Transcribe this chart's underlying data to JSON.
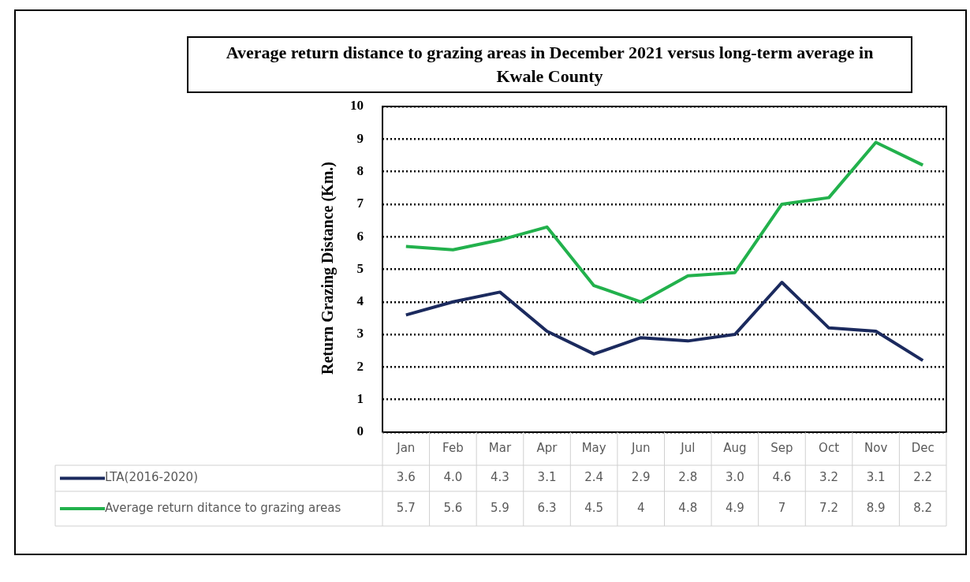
{
  "chart_data": {
    "type": "line",
    "title": "Average return distance to grazing areas in December 2021 versus long-term average in Kwale County",
    "ylabel": "Return  Grazing Distance (Km.)",
    "categories": [
      "Jan",
      "Feb",
      "Mar",
      "Apr",
      "May",
      "Jun",
      "Jul",
      "Aug",
      "Sep",
      "Oct",
      "Nov",
      "Dec"
    ],
    "series": [
      {
        "name": "LTA(2016-2020)",
        "color": "#1b2a5e",
        "values": [
          3.6,
          4.0,
          4.3,
          3.1,
          2.4,
          2.9,
          2.8,
          3.0,
          4.6,
          3.2,
          3.1,
          2.2
        ],
        "value_labels": [
          "3.6",
          "4.0",
          "4.3",
          "3.1",
          "2.4",
          "2.9",
          "2.8",
          "3.0",
          "4.6",
          "3.2",
          "3.1",
          "2.2"
        ]
      },
      {
        "name": "Average return ditance to grazing areas",
        "color": "#22b14c",
        "values": [
          5.7,
          5.6,
          5.9,
          6.3,
          4.5,
          4,
          4.8,
          4.9,
          7,
          7.2,
          8.9,
          8.2
        ],
        "value_labels": [
          "5.7",
          "5.6",
          "5.9",
          "6.3",
          "4.5",
          "4",
          "4.8",
          "4.9",
          "7",
          "7.2",
          "8.9",
          "8.2"
        ]
      }
    ],
    "ylim": [
      0,
      10
    ],
    "yticks": [
      0,
      1,
      2,
      3,
      4,
      5,
      6,
      7,
      8,
      9,
      10
    ],
    "grid": "y",
    "legend": "bottom",
    "marker": "none",
    "line_style": "solid"
  }
}
